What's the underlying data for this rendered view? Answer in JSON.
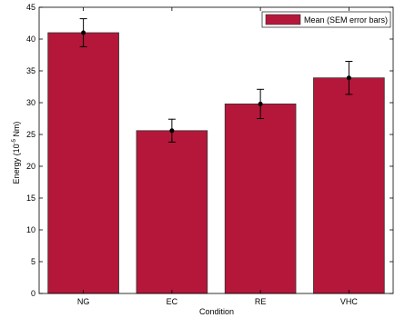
{
  "chart_data": {
    "type": "bar",
    "categories": [
      "NG",
      "EC",
      "RE",
      "VHC"
    ],
    "series": [
      {
        "name": "Mean (SEM error bars)",
        "values": [
          41.0,
          25.6,
          29.8,
          33.9
        ],
        "error": [
          2.2,
          1.8,
          2.3,
          2.6
        ]
      }
    ],
    "xlabel": "Condition",
    "ylabel_main": "Energy (10",
    "ylabel_sup": "-5",
    "ylabel_end": " Nm)",
    "ylim": [
      0,
      45
    ],
    "yticks": [
      0,
      5,
      10,
      15,
      20,
      25,
      30,
      35,
      40,
      45
    ],
    "ytick_labels": [
      "0",
      "5",
      "10",
      "15",
      "20",
      "25",
      "30",
      "35",
      "40",
      "45"
    ],
    "grid": false,
    "legend_position": "top-right",
    "bar_color": "#b5173a",
    "edge_color": "#333333"
  }
}
